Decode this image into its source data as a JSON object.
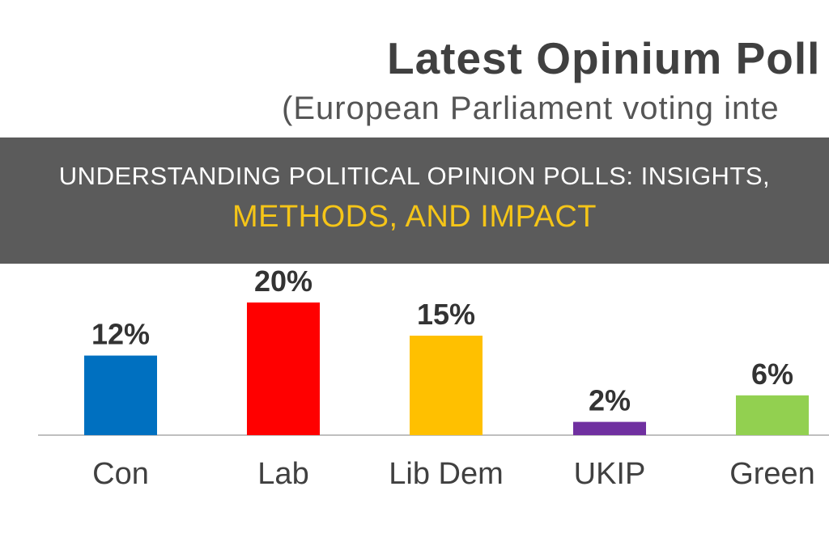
{
  "chart_data": {
    "type": "bar",
    "title": "Latest Opinium Poll",
    "subtitle": "(European Parliament voting inte",
    "categories": [
      "Con",
      "Lab",
      "Lib Dem",
      "UKIP",
      "Green"
    ],
    "values": [
      12,
      20,
      15,
      2,
      6
    ],
    "data_labels": [
      "12%",
      "20%",
      "15%",
      "2%",
      "6%"
    ],
    "colors": [
      "#0070c0",
      "#ff0000",
      "#ffc000",
      "#7030a0",
      "#92d050"
    ],
    "ylim": [
      0,
      20
    ],
    "grid": false
  },
  "banner": {
    "line1": "UNDERSTANDING POLITICAL OPINION POLLS: INSIGHTS,",
    "line2": "METHODS, AND IMPACT"
  }
}
